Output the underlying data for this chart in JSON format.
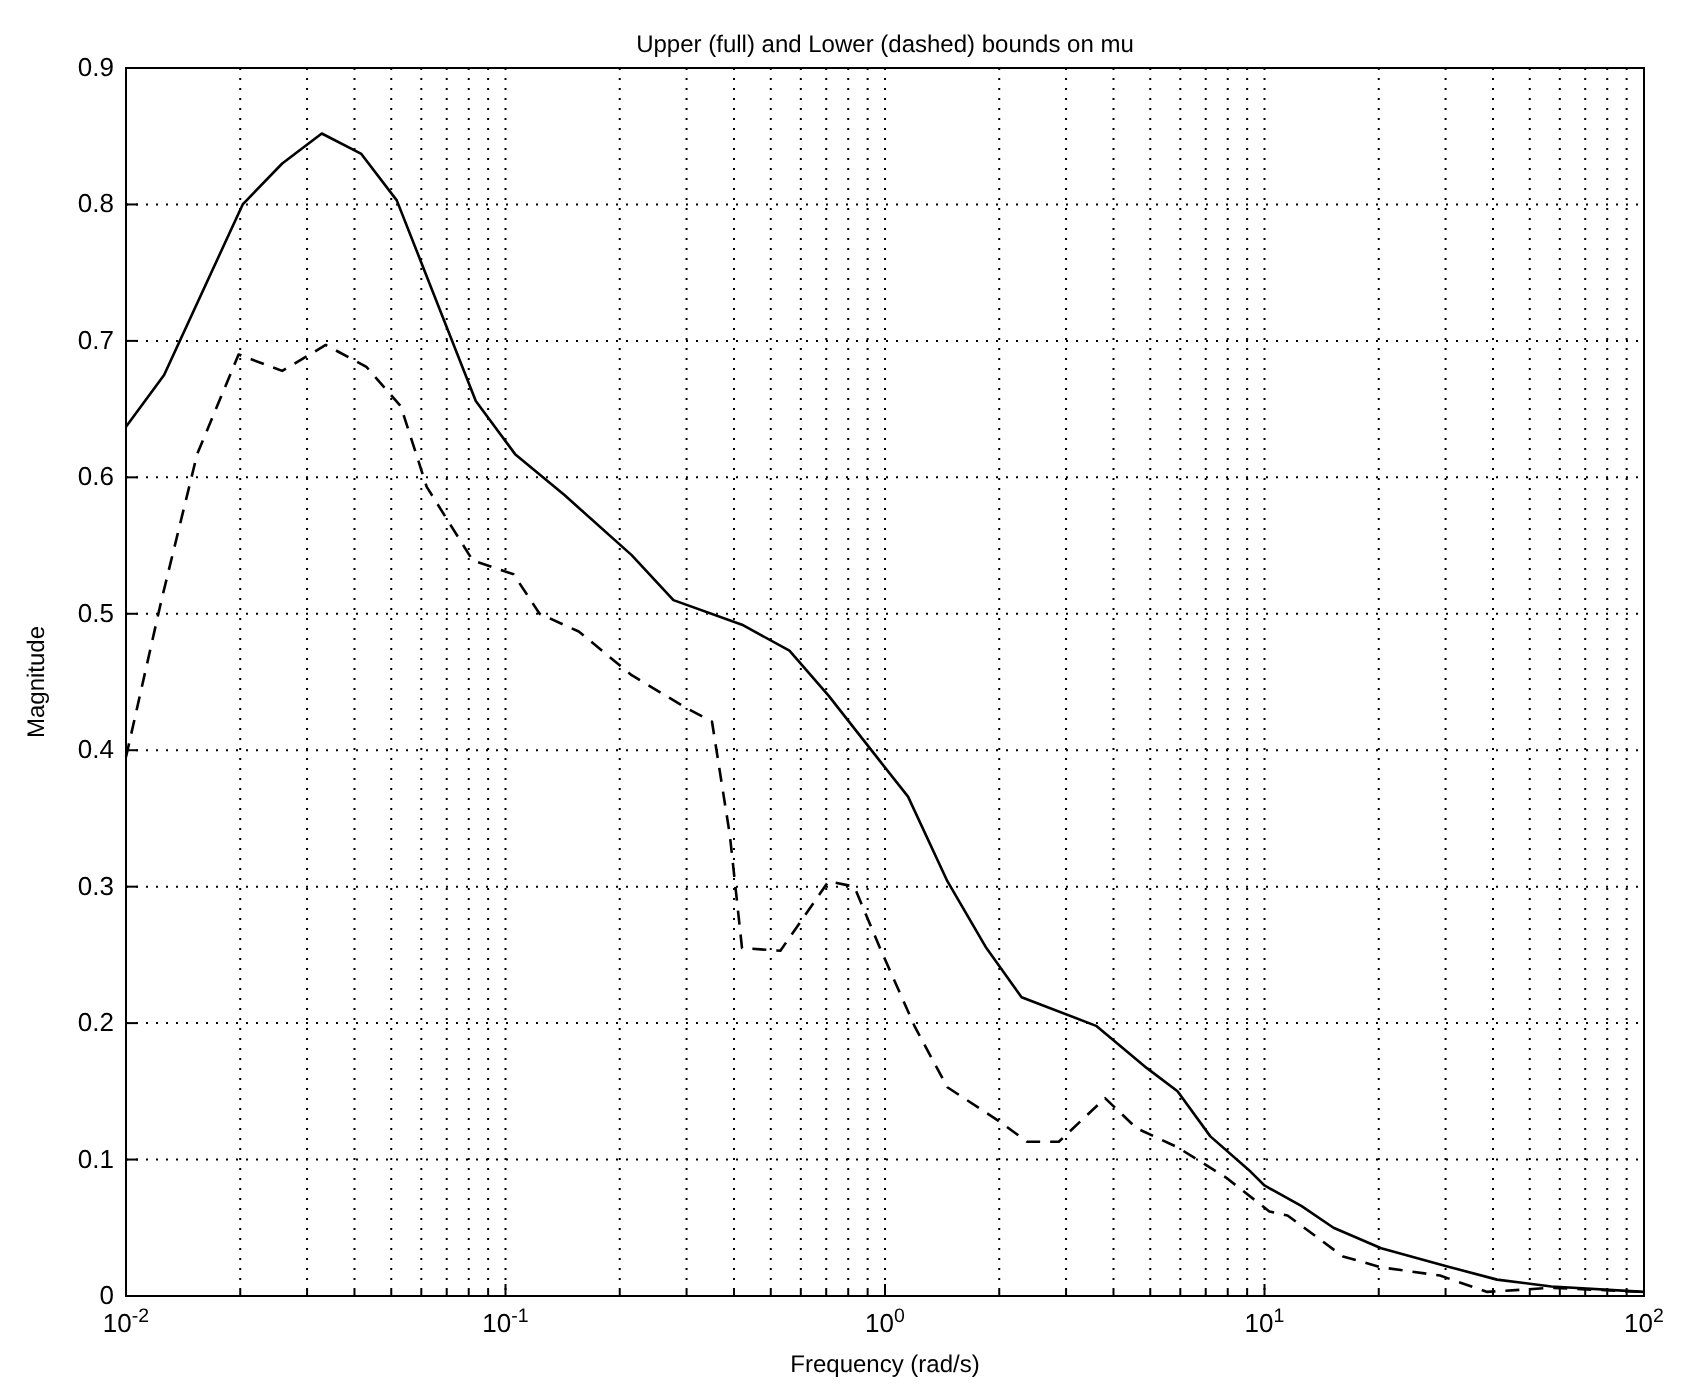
{
  "chart_data": {
    "type": "line",
    "title": "Upper (full) and Lower (dashed) bounds on mu",
    "xlabel": "Frequency (rad/s)",
    "ylabel": "Magnitude",
    "log": "x",
    "grid": true,
    "xlim": [
      0.01,
      100
    ],
    "ylim": [
      0,
      0.9
    ],
    "xticks": [
      {
        "value": 0.01,
        "label": "10$^{-2}$"
      },
      {
        "value": 0.1,
        "label": "10$^{-1}$"
      },
      {
        "value": 1,
        "label": "10$^{0}$"
      },
      {
        "value": 10,
        "label": "10$^{1}$"
      },
      {
        "value": 100,
        "label": "10$^{2}$"
      }
    ],
    "yticks": [
      0,
      0.1,
      0.2,
      0.3,
      0.4,
      0.5,
      0.6,
      0.7,
      0.8,
      0.9
    ],
    "series": [
      {
        "color": "#000000",
        "line_style": "solid",
        "x": [
          0.01,
          0.0126,
          0.0203,
          0.0258,
          0.0328,
          0.0417,
          0.0517,
          0.0835,
          0.106,
          0.143,
          0.215,
          0.277,
          0.42,
          0.56,
          0.71,
          0.97,
          1.15,
          1.46,
          1.85,
          2.29,
          3.6,
          4.9,
          5.9,
          7.2,
          9.2,
          10,
          12.5,
          15.2,
          20.3,
          30,
          41,
          57,
          100
        ],
        "values": [
          0.637,
          0.675,
          0.8,
          0.83,
          0.852,
          0.837,
          0.803,
          0.656,
          0.617,
          0.587,
          0.543,
          0.51,
          0.492,
          0.473,
          0.44,
          0.392,
          0.366,
          0.304,
          0.255,
          0.219,
          0.198,
          0.167,
          0.15,
          0.117,
          0.091,
          0.081,
          0.066,
          0.05,
          0.035,
          0.022,
          0.012,
          0.007,
          0.003
        ]
      },
      {
        "color": "#000000",
        "line_style": "dashed",
        "x": [
          0.01,
          0.0124,
          0.0154,
          0.0198,
          0.0258,
          0.0336,
          0.043,
          0.053,
          0.062,
          0.082,
          0.105,
          0.123,
          0.156,
          0.215,
          0.295,
          0.35,
          0.39,
          0.42,
          0.53,
          0.71,
          0.83,
          0.97,
          1.2,
          1.46,
          2.0,
          2.37,
          2.87,
          3.8,
          4.6,
          5.9,
          7.9,
          10.3,
          11.5,
          16.1,
          20.3,
          29,
          38.6,
          57,
          100
        ],
        "values": [
          0.395,
          0.51,
          0.617,
          0.69,
          0.678,
          0.697,
          0.681,
          0.652,
          0.593,
          0.539,
          0.529,
          0.5,
          0.487,
          0.455,
          0.432,
          0.421,
          0.338,
          0.255,
          0.253,
          0.304,
          0.3,
          0.255,
          0.197,
          0.153,
          0.128,
          0.113,
          0.113,
          0.145,
          0.123,
          0.109,
          0.087,
          0.062,
          0.059,
          0.029,
          0.021,
          0.015,
          0.003,
          0.006,
          0.003
        ]
      }
    ]
  }
}
